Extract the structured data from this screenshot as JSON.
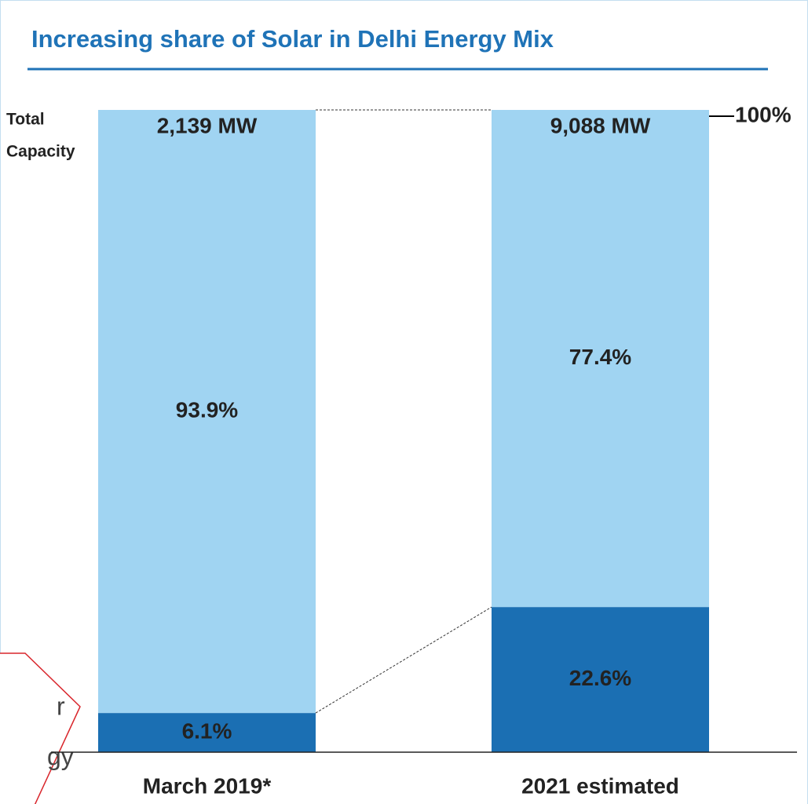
{
  "chart_data": {
    "type": "stacked_bar",
    "title": "Increasing share of Solar in Delhi Energy Mix",
    "categories": [
      "March 2019*",
      "2021 estimated"
    ],
    "series": [
      {
        "color": "#1b6fb3",
        "values": [
          6.1,
          22.6
        ],
        "value_labels": [
          "6.1%",
          "22.6%"
        ]
      },
      {
        "color": "#a0d4f2",
        "values": [
          93.9,
          77.4
        ],
        "value_labels": [
          "93.9%",
          "77.4%"
        ]
      }
    ],
    "ylim": [
      0,
      100
    ],
    "total_label": [
      "Total",
      "Capacity"
    ],
    "totals": [
      "2,139 MW",
      "9,088 MW"
    ],
    "top_annotation": "100%",
    "callout_lines": [
      "r",
      "gy"
    ]
  }
}
